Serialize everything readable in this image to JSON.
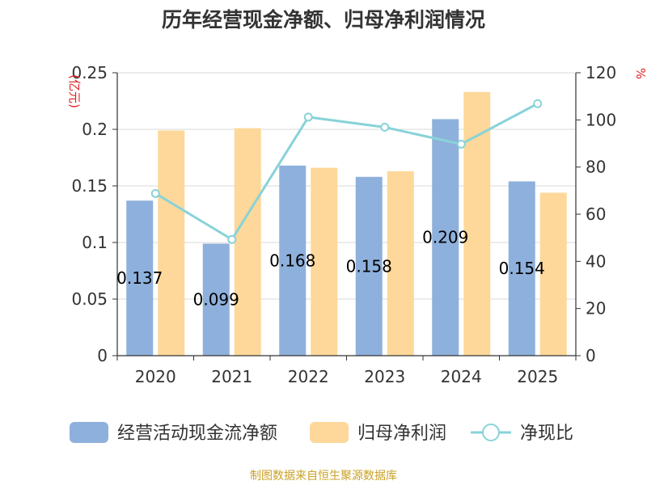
{
  "chart_data": {
    "type": "bar",
    "title": "历年经营现金净额、归母净利润情况",
    "categories": [
      "2020",
      "2021",
      "2022",
      "2023",
      "2024",
      "2025"
    ],
    "series": [
      {
        "name": "经营活动现金流净额",
        "type": "bar",
        "axis": "left",
        "values": [
          0.137,
          0.099,
          0.168,
          0.158,
          0.209,
          0.154
        ],
        "labels": [
          "0.137",
          "0.099",
          "0.168",
          "0.158",
          "0.209",
          "0.154"
        ],
        "color": "#8eb0dc"
      },
      {
        "name": "归母净利润",
        "type": "bar",
        "axis": "left",
        "values": [
          0.199,
          0.201,
          0.166,
          0.163,
          0.233,
          0.144
        ],
        "color": "#fdd89a"
      },
      {
        "name": "净现比",
        "type": "line",
        "axis": "right",
        "values": [
          68.8,
          49.3,
          101.2,
          96.9,
          89.7,
          106.9
        ],
        "color": "#88d3d8"
      }
    ],
    "y_left": {
      "label": "(亿元)",
      "min": 0,
      "max": 0.25,
      "ticks": [
        "0",
        "0.05",
        "0.1",
        "0.15",
        "0.2",
        "0.25"
      ]
    },
    "y_right": {
      "label": "%",
      "min": 0,
      "max": 120,
      "ticks": [
        "0",
        "20",
        "40",
        "60",
        "80",
        "100",
        "120"
      ]
    },
    "grid": true,
    "legend_position": "bottom"
  },
  "footer": {
    "source": "制图数据来自恒生聚源数据库"
  }
}
